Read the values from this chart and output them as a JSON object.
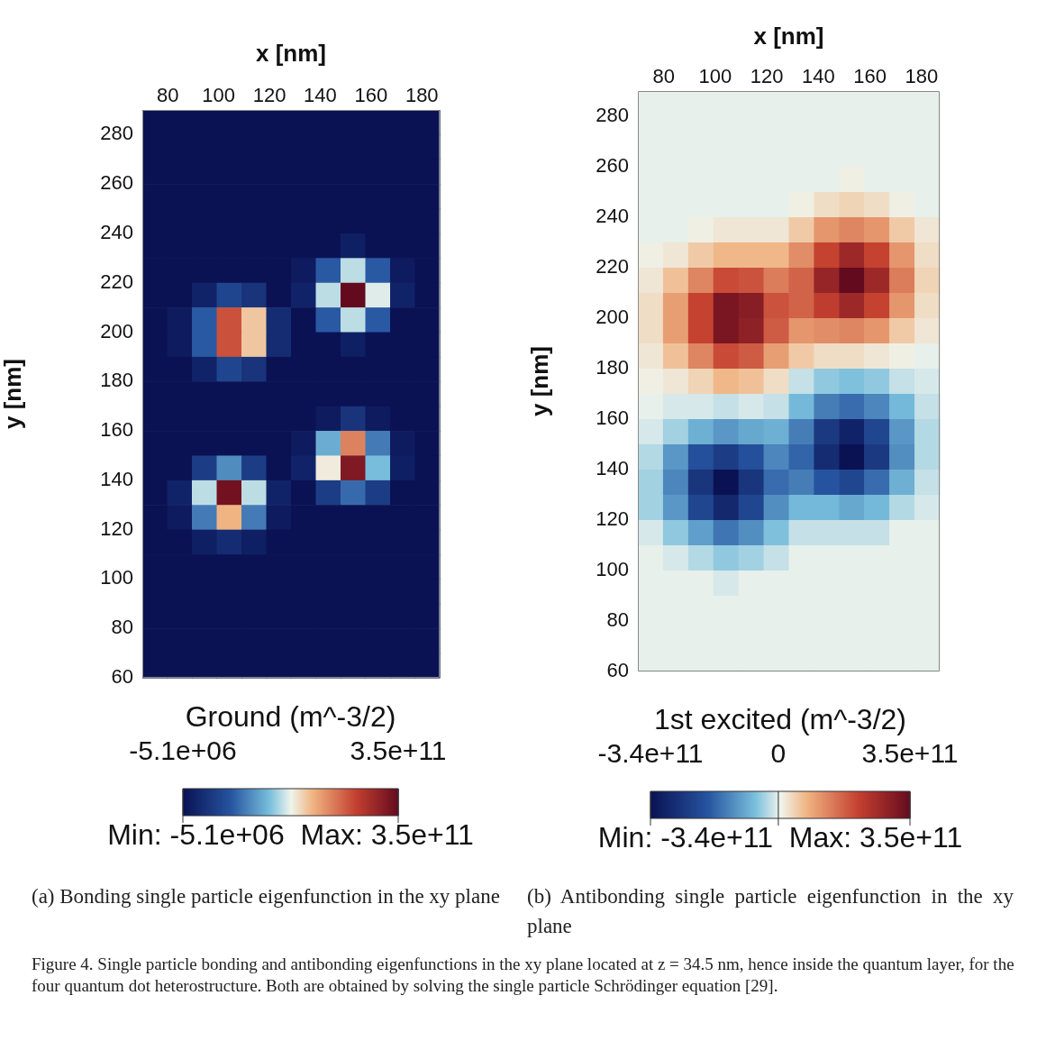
{
  "chart_data": [
    {
      "type": "heatmap",
      "xlabel": "x [nm]",
      "ylabel": "y [nm]",
      "clabel": "Ground (m^-3/2)",
      "xlim": [
        70,
        187
      ],
      "ylim": [
        60,
        290
      ],
      "xticks": [
        80,
        100,
        120,
        140,
        160,
        180
      ],
      "yticks": [
        60,
        80,
        100,
        120,
        140,
        160,
        180,
        200,
        220,
        240,
        260,
        280
      ],
      "clim": [
        -5100000.0,
        350000000000.0
      ],
      "cticks": [
        {
          "value": -5100000.0,
          "label": "-5.1e+06"
        },
        {
          "value": 350000000000.0,
          "label": "3.5e+11"
        }
      ],
      "annotations": [
        "Min: -5.1e+06  Max: 3.5e+11",
        "(a) Bonding single particle eigenfunction in the xy plane"
      ],
      "cells": [
        [
          0,
          0,
          0,
          0,
          0,
          0,
          0,
          0,
          0,
          0,
          0,
          0
        ],
        [
          0,
          0,
          0,
          0,
          0,
          0,
          0,
          0,
          0,
          0,
          0,
          0
        ],
        [
          0,
          0,
          0,
          0,
          0,
          0,
          0,
          0,
          0,
          0,
          0,
          0
        ],
        [
          0,
          0,
          0,
          0,
          0,
          0,
          0,
          0,
          0,
          0,
          0,
          0
        ],
        [
          0,
          0,
          0,
          0,
          0,
          0,
          0,
          0,
          0,
          0,
          0,
          0
        ],
        [
          0,
          0,
          0,
          0,
          0,
          0,
          0,
          0,
          15000000000.0,
          0,
          0,
          0
        ],
        [
          0,
          0,
          0,
          0,
          0,
          0,
          10000000000.0,
          80000000000.0,
          160000000000.0,
          80000000000.0,
          10000000000.0,
          0
        ],
        [
          0,
          0,
          20000000000.0,
          60000000000.0,
          40000000000.0,
          0,
          20000000000.0,
          160000000000.0,
          350000000000.0,
          170000000000.0,
          20000000000.0,
          0
        ],
        [
          0,
          10000000000.0,
          80000000000.0,
          270000000000.0,
          200000000000.0,
          30000000000.0,
          0,
          80000000000.0,
          160000000000.0,
          80000000000.0,
          0,
          0
        ],
        [
          0,
          10000000000.0,
          80000000000.0,
          270000000000.0,
          200000000000.0,
          30000000000.0,
          0,
          0,
          15000000000.0,
          0,
          0,
          0
        ],
        [
          0,
          0,
          20000000000.0,
          60000000000.0,
          40000000000.0,
          0,
          0,
          0,
          0,
          0,
          0,
          0
        ],
        [
          0,
          0,
          0,
          0,
          0,
          0,
          0,
          0,
          0,
          0,
          0,
          0
        ],
        [
          0,
          0,
          0,
          0,
          0,
          0,
          0,
          10000000000.0,
          40000000000.0,
          10000000000.0,
          0,
          0
        ],
        [
          0,
          0,
          0,
          0,
          0,
          0,
          10000000000.0,
          130000000000.0,
          240000000000.0,
          100000000000.0,
          10000000000.0,
          0
        ],
        [
          0,
          0,
          50000000000.0,
          110000000000.0,
          50000000000.0,
          0,
          20000000000.0,
          180000000000.0,
          330000000000.0,
          140000000000.0,
          15000000000.0,
          0
        ],
        [
          0,
          20000000000.0,
          160000000000.0,
          340000000000.0,
          160000000000.0,
          20000000000.0,
          0,
          50000000000.0,
          90000000000.0,
          50000000000.0,
          0,
          0
        ],
        [
          0,
          10000000000.0,
          100000000000.0,
          210000000000.0,
          100000000000.0,
          10000000000.0,
          0,
          0,
          0,
          0,
          0,
          0
        ],
        [
          0,
          0,
          15000000000.0,
          30000000000.0,
          15000000000.0,
          0,
          0,
          0,
          0,
          0,
          0,
          0
        ],
        [
          0,
          0,
          0,
          0,
          0,
          0,
          0,
          0,
          0,
          0,
          0,
          0
        ],
        [
          0,
          0,
          0,
          0,
          0,
          0,
          0,
          0,
          0,
          0,
          0,
          0
        ],
        [
          0,
          0,
          0,
          0,
          0,
          0,
          0,
          0,
          0,
          0,
          0,
          0
        ],
        [
          0,
          0,
          0,
          0,
          0,
          0,
          0,
          0,
          0,
          0,
          0,
          0
        ],
        [
          0,
          0,
          0,
          0,
          0,
          0,
          0,
          0,
          0,
          0,
          0,
          0
        ]
      ]
    },
    {
      "type": "heatmap",
      "xlabel": "x [nm]",
      "ylabel": "y [nm]",
      "clabel": "1st excited (m^-3/2)",
      "xlim": [
        70,
        187
      ],
      "ylim": [
        60,
        290
      ],
      "xticks": [
        80,
        100,
        120,
        140,
        160,
        180
      ],
      "yticks": [
        60,
        80,
        100,
        120,
        140,
        160,
        180,
        200,
        220,
        240,
        260,
        280
      ],
      "clim": [
        -340000000000.0,
        350000000000.0
      ],
      "cticks": [
        {
          "value": -340000000000.0,
          "label": "-3.4e+11"
        },
        0,
        {
          "value": 350000000000.0,
          "label": "3.5e+11"
        }
      ],
      "annotations": [
        "Min: -3.4e+11  Max: 3.5e+11",
        "(b) Antibonding single particle eigenfunction in the xy plane",
        "Figure 4. Single particle bonding and antibonding eigenfunctions in the xy plane located at z = 34.5 nm, hence inside the quantum layer, for the four quantum dot heterostructure. Both are obtained by solving the single particle Schrödinger equation [29]."
      ],
      "cells": [
        [
          0,
          0,
          0,
          0,
          0,
          0,
          0,
          0,
          0,
          0,
          0,
          0
        ],
        [
          0,
          0,
          0,
          0,
          0,
          0,
          0,
          0,
          0,
          0,
          0,
          0
        ],
        [
          0,
          0,
          0,
          0,
          0,
          0,
          0,
          0,
          0,
          0,
          0,
          0
        ],
        [
          0,
          0,
          0,
          0,
          0,
          0,
          0,
          0,
          10000000000.0,
          0,
          0,
          0
        ],
        [
          0,
          0,
          0,
          0,
          0,
          0,
          10000000000.0,
          30000000000.0,
          40000000000.0,
          30000000000.0,
          10000000000.0,
          0
        ],
        [
          0,
          0,
          10000000000.0,
          20000000000.0,
          20000000000.0,
          20000000000.0,
          50000000000.0,
          110000000000.0,
          130000000000.0,
          110000000000.0,
          50000000000.0,
          20000000000.0
        ],
        [
          10000000000.0,
          20000000000.0,
          50000000000.0,
          70000000000.0,
          70000000000.0,
          70000000000.0,
          120000000000.0,
          210000000000.0,
          270000000000.0,
          210000000000.0,
          110000000000.0,
          30000000000.0
        ],
        [
          20000000000.0,
          60000000000.0,
          130000000000.0,
          200000000000.0,
          190000000000.0,
          140000000000.0,
          170000000000.0,
          280000000000.0,
          350000000000.0,
          270000000000.0,
          140000000000.0,
          40000000000.0
        ],
        [
          30000000000.0,
          100000000000.0,
          210000000000.0,
          320000000000.0,
          300000000000.0,
          190000000000.0,
          170000000000.0,
          220000000000.0,
          270000000000.0,
          210000000000.0,
          110000000000.0,
          30000000000.0
        ],
        [
          30000000000.0,
          100000000000.0,
          210000000000.0,
          320000000000.0,
          290000000000.0,
          180000000000.0,
          110000000000.0,
          120000000000.0,
          130000000000.0,
          110000000000.0,
          50000000000.0,
          20000000000.0
        ],
        [
          20000000000.0,
          60000000000.0,
          130000000000.0,
          200000000000.0,
          180000000000.0,
          100000000000.0,
          50000000000.0,
          30000000000.0,
          30000000000.0,
          20000000000.0,
          10000000000.0,
          0
        ],
        [
          10000000000.0,
          20000000000.0,
          40000000000.0,
          70000000000.0,
          60000000000.0,
          30000000000.0,
          -20000000000.0,
          -50000000000.0,
          -60000000000.0,
          -50000000000.0,
          -20000000000.0,
          -10000000000.0
        ],
        [
          0,
          -10000000000.0,
          -10000000000.0,
          -20000000000.0,
          -10000000000.0,
          -20000000000.0,
          -70000000000.0,
          -140000000000.0,
          -160000000000.0,
          -130000000000.0,
          -70000000000.0,
          -20000000000.0
        ],
        [
          -10000000000.0,
          -40000000000.0,
          -80000000000.0,
          -110000000000.0,
          -90000000000.0,
          -80000000000.0,
          -140000000000.0,
          -250000000000.0,
          -300000000000.0,
          -220000000000.0,
          -110000000000.0,
          -30000000000.0
        ],
        [
          -30000000000.0,
          -110000000000.0,
          -200000000000.0,
          -240000000000.0,
          -200000000000.0,
          -130000000000.0,
          -170000000000.0,
          -280000000000.0,
          -340000000000.0,
          -250000000000.0,
          -120000000000.0,
          -30000000000.0
        ],
        [
          -40000000000.0,
          -130000000000.0,
          -260000000000.0,
          -340000000000.0,
          -260000000000.0,
          -160000000000.0,
          -140000000000.0,
          -190000000000.0,
          -220000000000.0,
          -160000000000.0,
          -80000000000.0,
          -20000000000.0
        ],
        [
          -40000000000.0,
          -110000000000.0,
          -220000000000.0,
          -290000000000.0,
          -220000000000.0,
          -120000000000.0,
          -70000000000.0,
          -70000000000.0,
          -90000000000.0,
          -70000000000.0,
          -30000000000.0,
          -10000000000.0
        ],
        [
          -10000000000.0,
          -50000000000.0,
          -100000000000.0,
          -150000000000.0,
          -120000000000.0,
          -60000000000.0,
          -20000000000.0,
          -20000000000.0,
          -20000000000.0,
          -20000000000.0,
          0,
          0
        ],
        [
          0,
          -10000000000.0,
          -30000000000.0,
          -50000000000.0,
          -40000000000.0,
          -20000000000.0,
          0,
          0,
          0,
          0,
          0,
          0
        ],
        [
          0,
          0,
          0,
          -10000000000.0,
          0,
          0,
          0,
          0,
          0,
          0,
          0,
          0
        ],
        [
          0,
          0,
          0,
          0,
          0,
          0,
          0,
          0,
          0,
          0,
          0,
          0
        ],
        [
          0,
          0,
          0,
          0,
          0,
          0,
          0,
          0,
          0,
          0,
          0,
          0
        ],
        [
          0,
          0,
          0,
          0,
          0,
          0,
          0,
          0,
          0,
          0,
          0,
          0
        ]
      ]
    }
  ]
}
